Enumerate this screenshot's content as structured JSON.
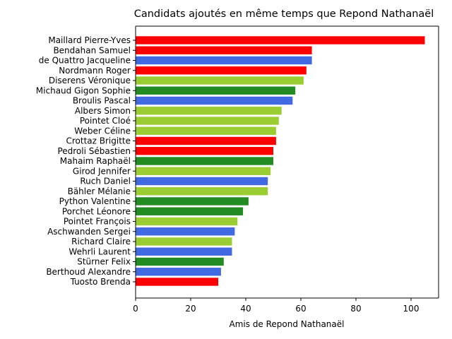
{
  "chart_data": {
    "type": "bar",
    "orientation": "horizontal",
    "title": "Candidats ajoutés en même temps que Repond Nathanaël",
    "xlabel": "Amis de Repond Nathanaël",
    "ylabel": "",
    "xlim": [
      0,
      110
    ],
    "xticks": [
      0,
      20,
      40,
      60,
      80,
      100
    ],
    "grid": false,
    "colors": {
      "red": "#ff0000",
      "blue": "#4169e1",
      "green": "#228b22",
      "lightgreen": "#9acd32"
    },
    "bars": [
      {
        "label": "Maillard Pierre-Yves",
        "value": 105,
        "color": "#ff0000"
      },
      {
        "label": "Bendahan Samuel",
        "value": 64,
        "color": "#ff0000"
      },
      {
        "label": "de Quattro Jacqueline",
        "value": 64,
        "color": "#4169e1"
      },
      {
        "label": "Nordmann Roger",
        "value": 62,
        "color": "#ff0000"
      },
      {
        "label": "Diserens Véronique",
        "value": 61,
        "color": "#9acd32"
      },
      {
        "label": "Michaud Gigon Sophie",
        "value": 58,
        "color": "#228b22"
      },
      {
        "label": "Broulis Pascal",
        "value": 57,
        "color": "#4169e1"
      },
      {
        "label": "Albers Simon",
        "value": 53,
        "color": "#9acd32"
      },
      {
        "label": "Pointet Cloé",
        "value": 52,
        "color": "#9acd32"
      },
      {
        "label": "Weber Céline",
        "value": 51,
        "color": "#9acd32"
      },
      {
        "label": "Crottaz Brigitte",
        "value": 51,
        "color": "#ff0000"
      },
      {
        "label": "Pedroli Sébastien",
        "value": 50,
        "color": "#ff0000"
      },
      {
        "label": "Mahaim Raphaël",
        "value": 50,
        "color": "#228b22"
      },
      {
        "label": "Girod Jennifer",
        "value": 49,
        "color": "#9acd32"
      },
      {
        "label": "Ruch Daniel",
        "value": 48,
        "color": "#4169e1"
      },
      {
        "label": "Bähler Mélanie",
        "value": 48,
        "color": "#9acd32"
      },
      {
        "label": "Python Valentine",
        "value": 41,
        "color": "#228b22"
      },
      {
        "label": "Porchet Léonore",
        "value": 39,
        "color": "#228b22"
      },
      {
        "label": "Pointet François",
        "value": 37,
        "color": "#9acd32"
      },
      {
        "label": "Aschwanden Sergei",
        "value": 36,
        "color": "#4169e1"
      },
      {
        "label": "Richard Claire",
        "value": 35,
        "color": "#9acd32"
      },
      {
        "label": "Wehrli Laurent",
        "value": 35,
        "color": "#4169e1"
      },
      {
        "label": "Stürner Felix",
        "value": 32,
        "color": "#228b22"
      },
      {
        "label": "Berthoud Alexandre",
        "value": 31,
        "color": "#4169e1"
      },
      {
        "label": "Tuosto Brenda",
        "value": 30,
        "color": "#ff0000"
      }
    ]
  }
}
